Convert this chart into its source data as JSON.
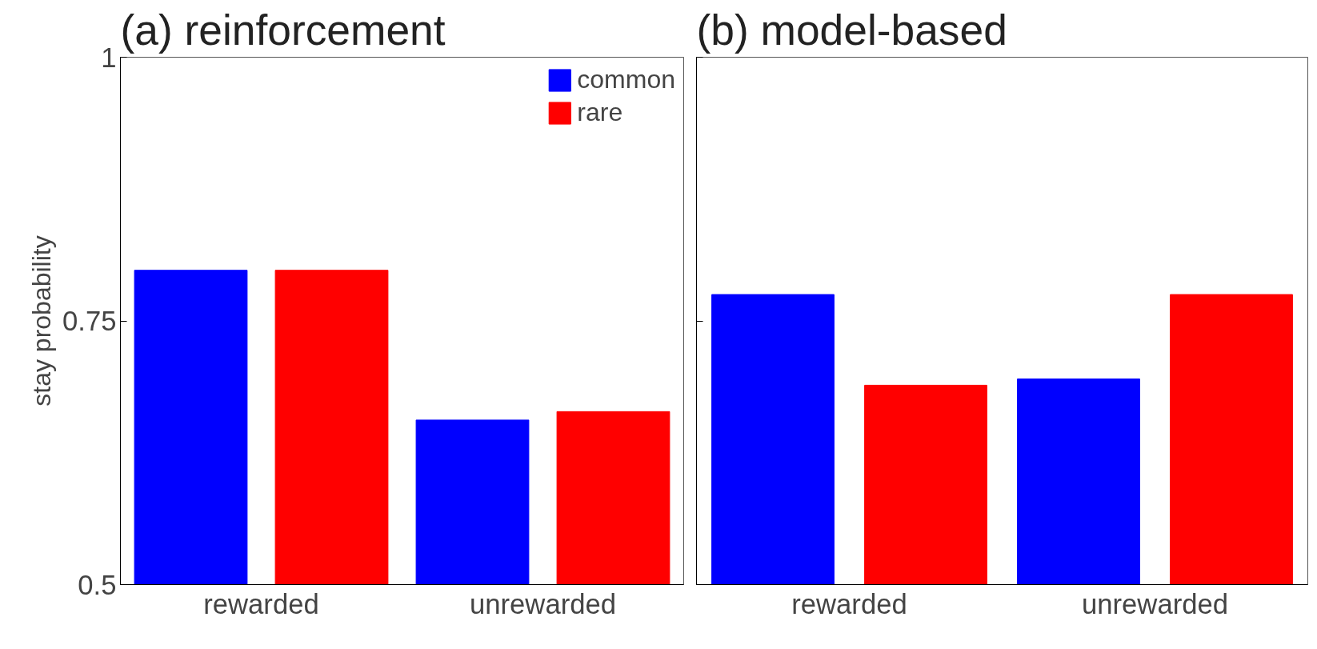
{
  "chart_data": [
    {
      "type": "bar",
      "title": "(a) reinforcement",
      "ylabel": "stay probability",
      "categories": [
        "rewarded",
        "unrewarded"
      ],
      "series": [
        {
          "name": "common",
          "color": "#0000ff",
          "values": [
            0.798,
            0.656
          ]
        },
        {
          "name": "rare",
          "color": "#ff0000",
          "values": [
            0.798,
            0.664
          ]
        }
      ],
      "ylim": [
        0.5,
        1
      ],
      "yticks": [
        0.5,
        0.75,
        1
      ],
      "grid": false,
      "legend": "top right"
    },
    {
      "type": "bar",
      "title": "(b) model-based",
      "categories": [
        "rewarded",
        "unrewarded"
      ],
      "series": [
        {
          "color": "#0000ff",
          "values": [
            0.775,
            0.695
          ]
        },
        {
          "color": "#ff0000",
          "values": [
            0.689,
            0.775
          ]
        }
      ],
      "ylim": [
        0.5,
        1
      ],
      "yticks": [
        {
          "value": 0.5,
          "label": null
        },
        {
          "value": 0.75,
          "label": null
        },
        {
          "value": 1,
          "label": null
        }
      ],
      "grid": false,
      "tick_labels": "x"
    }
  ]
}
